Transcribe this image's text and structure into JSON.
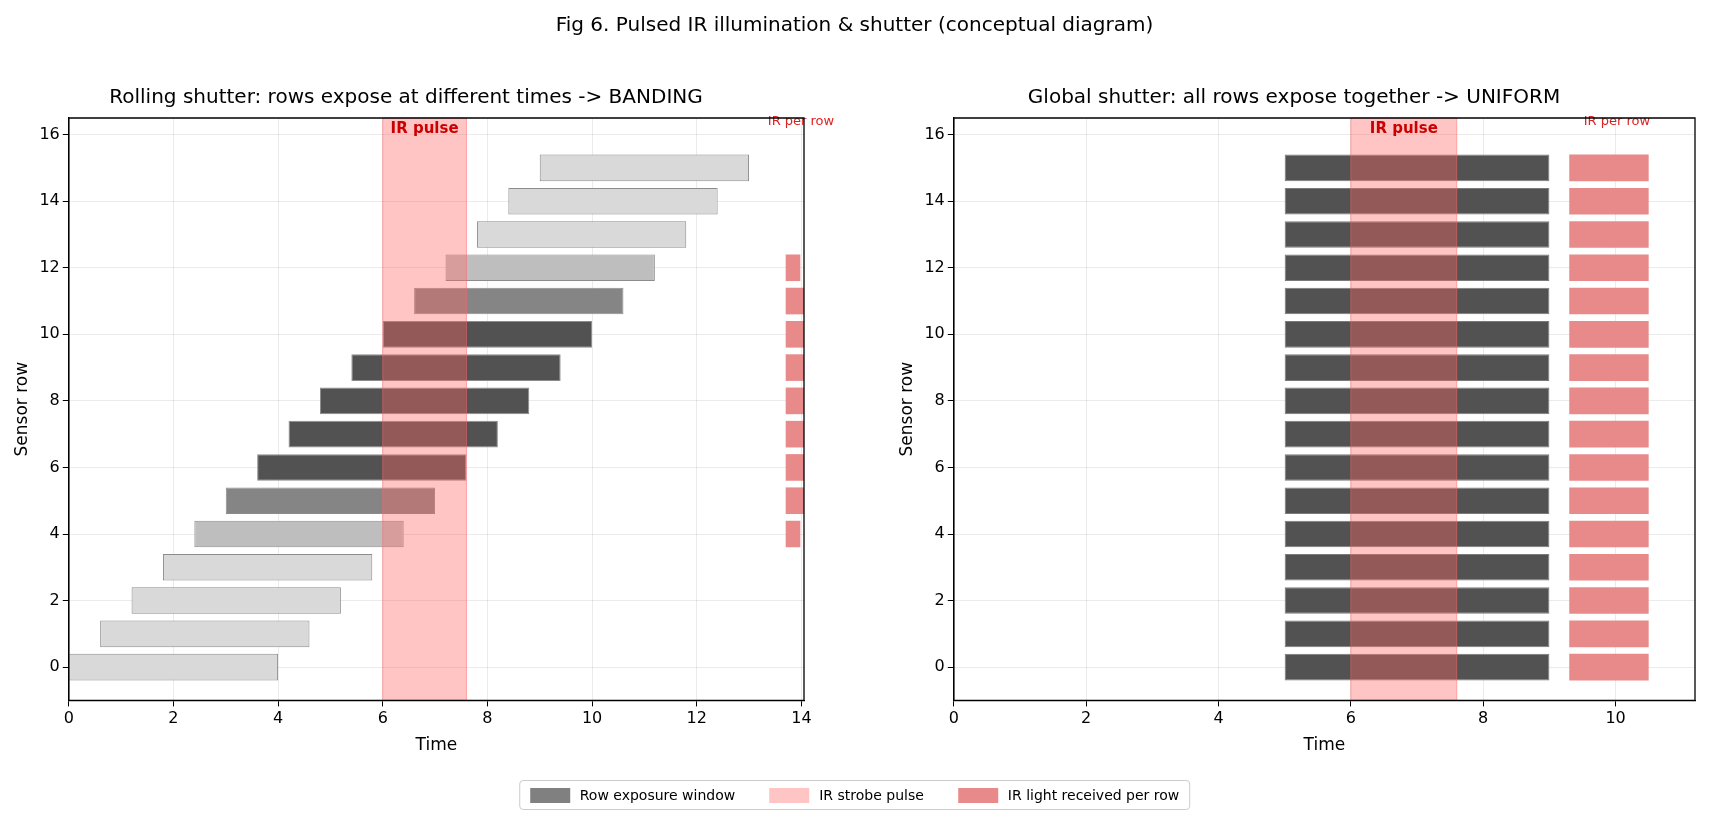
{
  "chart_data": [
    {
      "type": "bar",
      "orientation": "horizontal",
      "subtitle": "Fig 6. Pulsed IR illumination & shutter (conceptual diagram)",
      "title": "Rolling shutter: rows expose at different times -> BANDING",
      "xlabel": "Time",
      "ylabel": "Sensor row",
      "x": [
        0,
        1,
        2,
        3,
        4,
        5,
        6,
        7,
        8,
        9,
        10,
        11,
        12,
        13,
        14,
        15
      ],
      "series": [
        {
          "name": "Row exposure window",
          "color": "#808080",
          "colors": [
            "#d9d9d9",
            "#d9d9d9",
            "#d9d9d9",
            "#d9d9d9",
            "#bebebe",
            "#858585",
            "#525252",
            "#525252",
            "#525252",
            "#525252",
            "#525252",
            "#858585",
            "#bebebe",
            "#d9d9d9",
            "#d9d9d9",
            "#d9d9d9"
          ],
          "base": [
            0,
            0.6,
            1.2,
            1.8,
            2.4,
            3.0,
            3.6,
            4.2,
            4.8,
            5.4,
            6.0,
            6.6,
            7.2,
            7.8,
            8.4,
            9.0
          ],
          "values": [
            4,
            4,
            4,
            4,
            4,
            4,
            4,
            4,
            4,
            4,
            4,
            4,
            4,
            4,
            4,
            4
          ]
        },
        {
          "name": "IR light received per row",
          "color": "#e88a8a",
          "x": [
            4,
            5,
            6,
            7,
            8,
            9,
            10,
            11,
            12
          ],
          "base": [
            13.7,
            13.7,
            13.7,
            13.7,
            13.7,
            13.7,
            13.7,
            13.7,
            13.7
          ],
          "values": [
            0.28,
            0.35,
            0.35,
            0.35,
            0.35,
            0.35,
            0.35,
            0.35,
            0.28
          ]
        }
      ],
      "bands": [
        {
          "axis": "x",
          "from": 6,
          "to": 7.6,
          "label": "IR pulse",
          "color": "#ff6666"
        }
      ],
      "annotations": [
        "IR per row",
        "IR strobe pulse"
      ],
      "xlim": [
        0,
        14.05
      ],
      "xticks": [
        0,
        2,
        4,
        6,
        8,
        10,
        12,
        14
      ],
      "ylim": [
        -1,
        16.5
      ],
      "yticks": [
        0,
        2,
        4,
        6,
        8,
        10,
        12,
        14,
        16
      ],
      "grid": true,
      "legend": "bottom"
    },
    {
      "type": "bar",
      "orientation": "horizontal",
      "title": "Global shutter: all rows expose together -> UNIFORM",
      "xlabel": "Time",
      "ylabel": "Sensor row",
      "x": [
        0,
        1,
        2,
        3,
        4,
        5,
        6,
        7,
        8,
        9,
        10,
        11,
        12,
        13,
        14,
        15
      ],
      "series": [
        {
          "color": "#525252",
          "base": [
            5,
            5,
            5,
            5,
            5,
            5,
            5,
            5,
            5,
            5,
            5,
            5,
            5,
            5,
            5,
            5
          ],
          "values": [
            4,
            4,
            4,
            4,
            4,
            4,
            4,
            4,
            4,
            4,
            4,
            4,
            4,
            4,
            4,
            4
          ]
        },
        {
          "color": "#e88a8a",
          "base": [
            9.3,
            9.3,
            9.3,
            9.3,
            9.3,
            9.3,
            9.3,
            9.3,
            9.3,
            9.3,
            9.3,
            9.3,
            9.3,
            9.3,
            9.3,
            9.3
          ],
          "values": [
            1.2,
            1.2,
            1.2,
            1.2,
            1.2,
            1.2,
            1.2,
            1.2,
            1.2,
            1.2,
            1.2,
            1.2,
            1.2,
            1.2,
            1.2,
            1.2
          ]
        }
      ],
      "bands": [
        {
          "axis": "x",
          "from": 6,
          "to": 7.6,
          "label": "IR pulse",
          "color": "#ff6666"
        }
      ],
      "annotations": [
        "IR per row"
      ],
      "xlim": [
        0,
        11.2
      ],
      "xticks": [
        0,
        2,
        4,
        6,
        8,
        10
      ],
      "ylim": [
        -1,
        16.5
      ],
      "yticks": [
        0,
        2,
        4,
        6,
        8,
        10,
        12,
        14,
        16
      ],
      "grid": true
    }
  ]
}
